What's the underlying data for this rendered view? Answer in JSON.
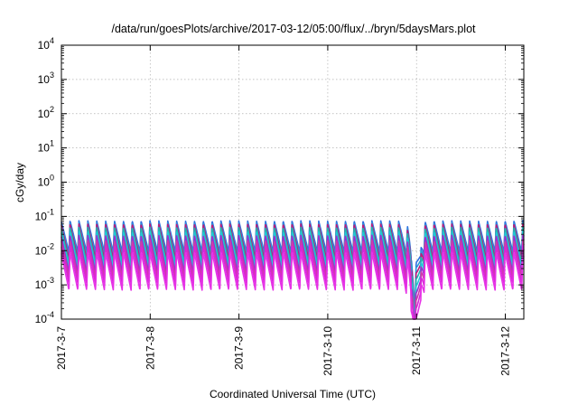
{
  "chart_data": {
    "type": "line",
    "title": "/data/run/goesPlots/archive/2017-03-12/05:00/flux/../bryn/5daysMars.plot",
    "xlabel": "Coordinated Universal Time (UTC)",
    "ylabel": "cGy/day",
    "scale_y": "log",
    "ylim": [
      0.0001,
      10000
    ],
    "xlim": [
      "2017-03-07 00:00",
      "2017-03-12 05:00"
    ],
    "grid": true,
    "legend": "none",
    "x_ticks": [
      "2017-3-7",
      "2017-3-8",
      "2017-3-9",
      "2017-3-10",
      "2017-3-11",
      "2017-3-12"
    ],
    "y_ticks": [
      {
        "base": "10",
        "exp": "-4",
        "value": 0.0001
      },
      {
        "base": "10",
        "exp": "-3",
        "value": 0.001
      },
      {
        "base": "10",
        "exp": "-2",
        "value": 0.01
      },
      {
        "base": "10",
        "exp": "-1",
        "value": 0.1
      },
      {
        "base": "10",
        "exp": "0",
        "value": 1
      },
      {
        "base": "10",
        "exp": "1",
        "value": 10
      },
      {
        "base": "10",
        "exp": "2",
        "value": 100
      },
      {
        "base": "10",
        "exp": "3",
        "value": 1000
      },
      {
        "base": "10",
        "exp": "4",
        "value": 10000
      }
    ],
    "pattern": {
      "description_free": true,
      "cycles_per_day": 10,
      "dip_date": "2017-03-11 00:00",
      "dip_factor_top": 0.05,
      "dip_factor_bottom": 0.3
    },
    "series": [
      {
        "color": "#2e6fe0",
        "peak": 0.075,
        "trough": 0.009
      },
      {
        "color": "#2a9ad8",
        "peak": 0.065,
        "trough": 0.007
      },
      {
        "color": "#c0187a",
        "peak": 0.06,
        "trough": 0.0055
      },
      {
        "color": "#1fb8b0",
        "peak": 0.048,
        "trough": 0.0042
      },
      {
        "color": "#22c9d8",
        "peak": 0.036,
        "trough": 0.003
      },
      {
        "color": "#9b2fd0",
        "peak": 0.028,
        "trough": 0.0022
      },
      {
        "color": "#d03aa8",
        "peak": 0.02,
        "trough": 0.0016
      },
      {
        "color": "#d925d9",
        "peak": 0.014,
        "trough": 0.0011
      },
      {
        "color": "#e632e6",
        "peak": 0.009,
        "trough": 0.0007
      }
    ]
  }
}
